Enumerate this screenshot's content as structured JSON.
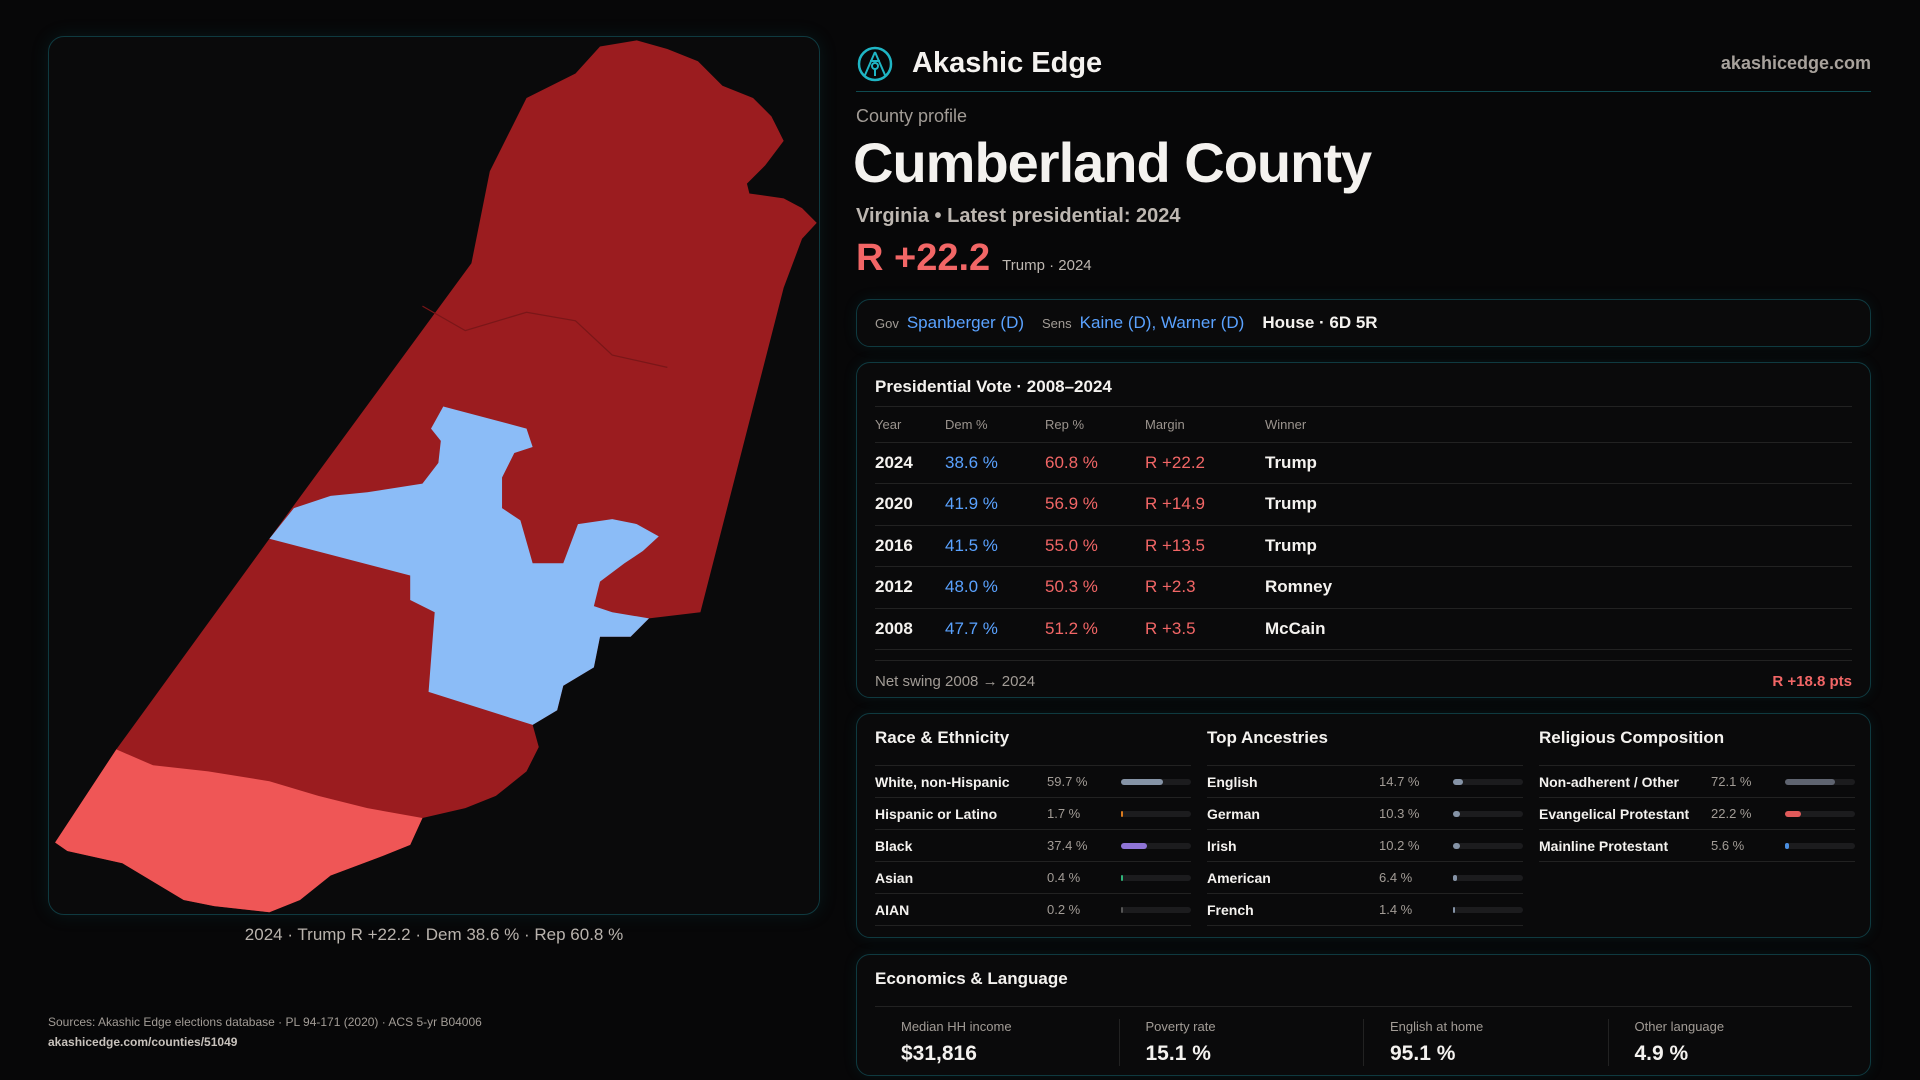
{
  "brand": {
    "name": "Akashic Edge",
    "site": "akashicedge.com",
    "logo_icon": "compass-key-emblem-icon",
    "accent": "#1fb5c4"
  },
  "profile": {
    "eyebrow": "County profile",
    "title": "Cumberland County",
    "subtitle": "Virginia • Latest presidential: 2024",
    "margin": "R +22.2",
    "margin_note": "Trump · 2024"
  },
  "leaders": {
    "gov_label": "Gov",
    "gov": "Spanberger (D)",
    "sens_label": "Sens",
    "sens": "Kaine (D), Warner (D)",
    "house": "House · 6D 5R"
  },
  "presidential": {
    "title": "Presidential Vote · 2008–2024",
    "headers": [
      "Year",
      "Dem %",
      "Rep %",
      "Margin",
      "Winner"
    ],
    "rows": [
      [
        "2024",
        "38.6 %",
        "60.8 %",
        "R +22.2",
        "Trump"
      ],
      [
        "2020",
        "41.9 %",
        "56.9 %",
        "R +14.9",
        "Trump"
      ],
      [
        "2016",
        "41.5 %",
        "55.0 %",
        "R +13.5",
        "Trump"
      ],
      [
        "2012",
        "48.0 %",
        "50.3 %",
        "R +2.3",
        "Romney"
      ],
      [
        "2008",
        "47.7 %",
        "51.2 %",
        "R +3.5",
        "McCain"
      ]
    ],
    "swing_label": "Net swing 2008 → 2024",
    "swing_value": "R +18.8 pts"
  },
  "race": {
    "title": "Race & Ethnicity",
    "items": [
      {
        "label": "White, non-Hispanic",
        "value": "59.7 %",
        "pct": 59.7,
        "color": "#8593a6"
      },
      {
        "label": "Hispanic or Latino",
        "value": "1.7 %",
        "pct": 1.7,
        "color": "#d97a1e"
      },
      {
        "label": "Black",
        "value": "37.4 %",
        "pct": 37.4,
        "color": "#8f74d6"
      },
      {
        "label": "Asian",
        "value": "0.4 %",
        "pct": 0.4,
        "color": "#2fb47a"
      },
      {
        "label": "AIAN",
        "value": "0.2 %",
        "pct": 0.2,
        "color": "#555"
      }
    ]
  },
  "ancestry": {
    "title": "Top Ancestries",
    "items": [
      {
        "label": "English",
        "value": "14.7 %",
        "pct": 14.7,
        "color": "#8593a6"
      },
      {
        "label": "German",
        "value": "10.3 %",
        "pct": 10.3,
        "color": "#8593a6"
      },
      {
        "label": "Irish",
        "value": "10.2 %",
        "pct": 10.2,
        "color": "#8593a6"
      },
      {
        "label": "American",
        "value": "6.4 %",
        "pct": 6.4,
        "color": "#8593a6"
      },
      {
        "label": "French",
        "value": "1.4 %",
        "pct": 1.4,
        "color": "#8593a6"
      }
    ]
  },
  "religion": {
    "title": "Religious Composition",
    "items": [
      {
        "label": "Non-adherent / Other",
        "value": "72.1 %",
        "pct": 72.1,
        "color": "#5f6470"
      },
      {
        "label": "Evangelical Protestant",
        "value": "22.2 %",
        "pct": 22.2,
        "color": "#e05a5a"
      },
      {
        "label": "Mainline Protestant",
        "value": "5.6 %",
        "pct": 5.6,
        "color": "#4a8ee0"
      }
    ]
  },
  "economics": {
    "title": "Economics & Language",
    "stats": [
      {
        "label": "Median HH income",
        "value": "$31,816"
      },
      {
        "label": "Poverty rate",
        "value": "15.1 %"
      },
      {
        "label": "English at home",
        "value": "95.1 %"
      },
      {
        "label": "Other language",
        "value": "4.9 %"
      }
    ]
  },
  "footer": {
    "sources": "Sources: Akashic Edge elections database · PL 94-171 (2020) · ACS 5-yr B04006",
    "url": "akashicedge.com/counties/51049"
  },
  "map": {
    "caption": "2024 · Trump R +22.2 · Dem 38.6 % · Rep 60.8 %",
    "colors": {
      "rep": "#9b1c1f",
      "dem": "#8bbcf7",
      "rep_lean": "#ef5656"
    }
  }
}
